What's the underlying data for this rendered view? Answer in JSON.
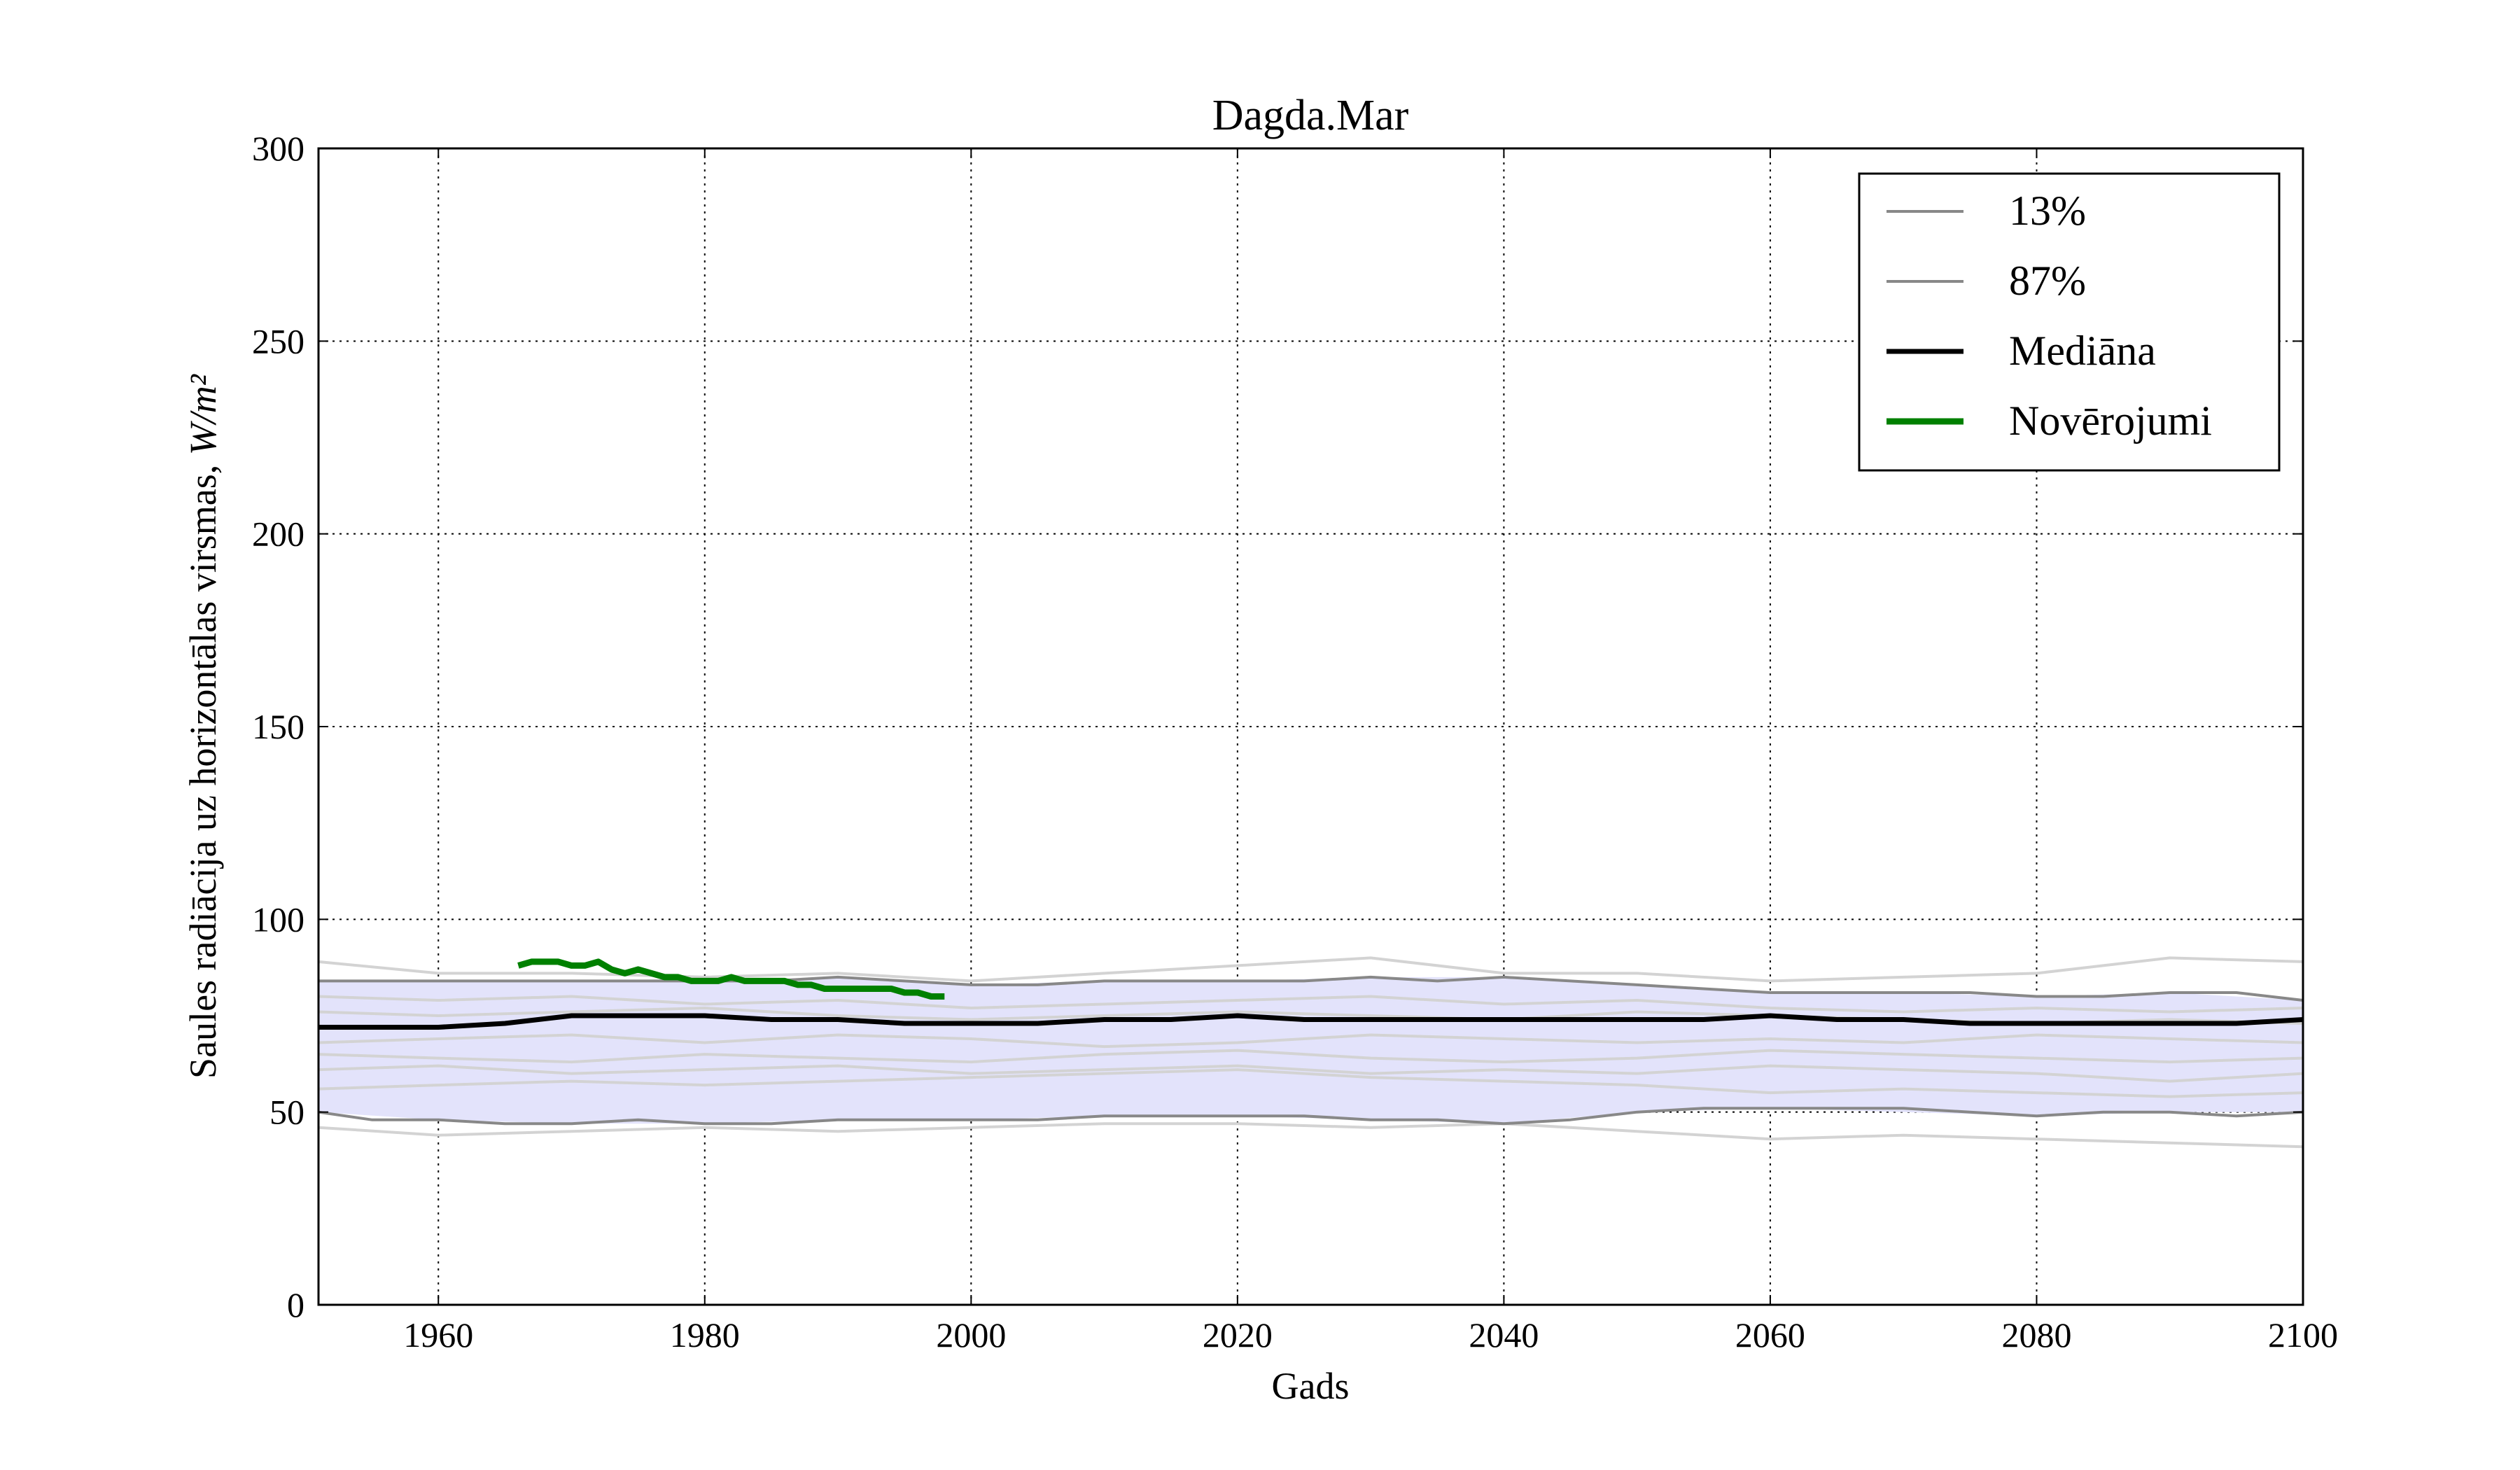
{
  "chart_data": {
    "type": "line",
    "title": "Dagda.Mar",
    "xlabel": "Gads",
    "ylabel": "Saules radiācija uz horizontālas virsmas, ",
    "ylabel_unit": "W/m²",
    "xlim": [
      1951,
      2100
    ],
    "ylim": [
      0,
      300
    ],
    "x_ticks": [
      1960,
      1980,
      2000,
      2020,
      2040,
      2060,
      2080,
      2100
    ],
    "y_ticks": [
      0,
      50,
      100,
      150,
      200,
      250,
      300
    ],
    "grid": true,
    "legend_position": "top-right",
    "colors": {
      "band_fill": "#e3e3fb",
      "ensemble": "#d3d3d3",
      "percentile": "#888888",
      "median": "#000000",
      "observations": "#008000"
    },
    "band": {
      "x": [
        1951,
        1960,
        1970,
        1980,
        1990,
        2000,
        2010,
        2020,
        2030,
        2040,
        2050,
        2060,
        2070,
        2080,
        2090,
        2100
      ],
      "lower": [
        50,
        48,
        47,
        47,
        48,
        48,
        49,
        49,
        48,
        47,
        50,
        51,
        50,
        49,
        50,
        50
      ],
      "upper": [
        84,
        84,
        84,
        84,
        85,
        83,
        84,
        84,
        85,
        85,
        83,
        81,
        81,
        80,
        81,
        79
      ]
    },
    "ensemble_members": [
      {
        "x": [
          1951,
          1960,
          1970,
          1980,
          1990,
          2000,
          2010,
          2020,
          2030,
          2040,
          2050,
          2060,
          2070,
          2080,
          2090,
          2100
        ],
        "values": [
          89,
          86,
          86,
          85,
          86,
          84,
          86,
          88,
          90,
          86,
          86,
          84,
          85,
          86,
          90,
          89
        ]
      },
      {
        "x": [
          1951,
          1960,
          1970,
          1980,
          1990,
          2000,
          2010,
          2020,
          2030,
          2040,
          2050,
          2060,
          2070,
          2080,
          2090,
          2100
        ],
        "values": [
          80,
          79,
          80,
          78,
          79,
          77,
          78,
          79,
          80,
          78,
          79,
          77,
          76,
          77,
          76,
          77
        ]
      },
      {
        "x": [
          1951,
          1960,
          1970,
          1980,
          1990,
          2000,
          2010,
          2020,
          2030,
          2040,
          2050,
          2060,
          2070,
          2080,
          2090,
          2100
        ],
        "values": [
          76,
          75,
          76,
          77,
          75,
          74,
          75,
          76,
          75,
          74,
          76,
          75,
          74,
          73,
          74,
          73
        ]
      },
      {
        "x": [
          1951,
          1960,
          1970,
          1980,
          1990,
          2000,
          2010,
          2020,
          2030,
          2040,
          2050,
          2060,
          2070,
          2080,
          2090,
          2100
        ],
        "values": [
          68,
          69,
          70,
          68,
          70,
          69,
          67,
          68,
          70,
          69,
          68,
          69,
          68,
          70,
          69,
          68
        ]
      },
      {
        "x": [
          1951,
          1960,
          1970,
          1980,
          1990,
          2000,
          2010,
          2020,
          2030,
          2040,
          2050,
          2060,
          2070,
          2080,
          2090,
          2100
        ],
        "values": [
          65,
          64,
          63,
          65,
          64,
          63,
          65,
          66,
          64,
          63,
          64,
          66,
          65,
          64,
          63,
          64
        ]
      },
      {
        "x": [
          1951,
          1960,
          1970,
          1980,
          1990,
          2000,
          2010,
          2020,
          2030,
          2040,
          2050,
          2060,
          2070,
          2080,
          2090,
          2100
        ],
        "values": [
          61,
          62,
          60,
          61,
          62,
          60,
          61,
          62,
          60,
          61,
          60,
          62,
          61,
          60,
          58,
          60
        ]
      },
      {
        "x": [
          1951,
          1960,
          1970,
          1980,
          1990,
          2000,
          2010,
          2020,
          2030,
          2040,
          2050,
          2060,
          2070,
          2080,
          2090,
          2100
        ],
        "values": [
          56,
          57,
          58,
          57,
          58,
          59,
          60,
          61,
          59,
          58,
          57,
          55,
          56,
          55,
          54,
          55
        ]
      },
      {
        "x": [
          1951,
          1960,
          1970,
          1980,
          1990,
          2000,
          2010,
          2020,
          2030,
          2040,
          2050,
          2060,
          2070,
          2080,
          2090,
          2100
        ],
        "values": [
          46,
          44,
          45,
          46,
          45,
          46,
          47,
          47,
          46,
          47,
          45,
          43,
          44,
          43,
          42,
          41
        ]
      }
    ],
    "series": [
      {
        "name": "13%",
        "x": [
          1951,
          1955,
          1960,
          1965,
          1970,
          1975,
          1980,
          1985,
          1990,
          1995,
          2000,
          2005,
          2010,
          2015,
          2020,
          2025,
          2030,
          2035,
          2040,
          2045,
          2050,
          2055,
          2060,
          2065,
          2070,
          2075,
          2080,
          2085,
          2090,
          2095,
          2100
        ],
        "values": [
          50,
          48,
          48,
          47,
          47,
          48,
          47,
          47,
          48,
          48,
          48,
          48,
          49,
          49,
          49,
          49,
          48,
          48,
          47,
          48,
          50,
          51,
          51,
          51,
          51,
          50,
          49,
          50,
          50,
          49,
          50
        ]
      },
      {
        "name": "87%",
        "x": [
          1951,
          1955,
          1960,
          1965,
          1970,
          1975,
          1980,
          1985,
          1990,
          1995,
          2000,
          2005,
          2010,
          2015,
          2020,
          2025,
          2030,
          2035,
          2040,
          2045,
          2050,
          2055,
          2060,
          2065,
          2070,
          2075,
          2080,
          2085,
          2090,
          2095,
          2100
        ],
        "values": [
          84,
          84,
          84,
          84,
          84,
          84,
          84,
          84,
          85,
          84,
          83,
          83,
          84,
          84,
          84,
          84,
          85,
          84,
          85,
          84,
          83,
          82,
          81,
          81,
          81,
          81,
          80,
          80,
          81,
          81,
          79
        ]
      },
      {
        "name": "Mediāna",
        "x": [
          1951,
          1955,
          1960,
          1965,
          1970,
          1975,
          1980,
          1985,
          1990,
          1995,
          2000,
          2005,
          2010,
          2015,
          2020,
          2025,
          2030,
          2035,
          2040,
          2045,
          2050,
          2055,
          2060,
          2065,
          2070,
          2075,
          2080,
          2085,
          2090,
          2095,
          2100
        ],
        "values": [
          72,
          72,
          72,
          73,
          75,
          75,
          75,
          74,
          74,
          73,
          73,
          73,
          74,
          74,
          75,
          74,
          74,
          74,
          74,
          74,
          74,
          74,
          75,
          74,
          74,
          73,
          73,
          73,
          73,
          73,
          74
        ]
      },
      {
        "name": "Novērojumi",
        "x": [
          1966,
          1967,
          1968,
          1969,
          1970,
          1971,
          1972,
          1973,
          1974,
          1975,
          1976,
          1977,
          1978,
          1979,
          1980,
          1981,
          1982,
          1983,
          1984,
          1985,
          1986,
          1987,
          1988,
          1989,
          1990,
          1991,
          1992,
          1993,
          1994,
          1995,
          1996,
          1997,
          1998
        ],
        "values": [
          88,
          89,
          89,
          89,
          88,
          88,
          89,
          87,
          86,
          87,
          86,
          85,
          85,
          84,
          84,
          84,
          85,
          84,
          84,
          84,
          84,
          83,
          83,
          82,
          82,
          82,
          82,
          82,
          82,
          81,
          81,
          80,
          80
        ]
      }
    ]
  }
}
